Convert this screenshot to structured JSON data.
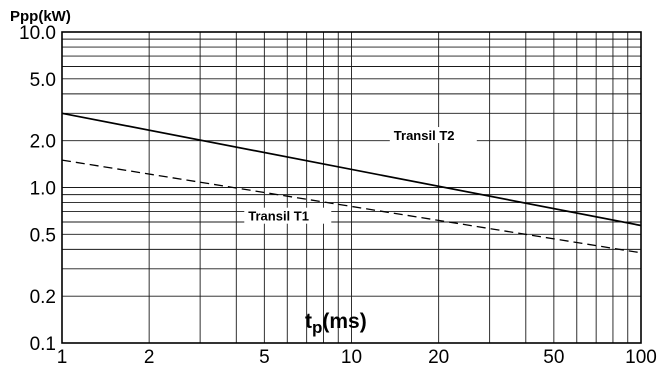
{
  "chart_data": {
    "type": "line",
    "title": "",
    "ylabel": "Ppp(kW)",
    "xlabel_main": "t",
    "xlabel_sub": "p",
    "xlabel_unit": "(ms)",
    "x_scale": "log",
    "y_scale": "log",
    "xlim": [
      1,
      100
    ],
    "ylim": [
      0.1,
      10
    ],
    "x_ticks": [
      1,
      2,
      5,
      10,
      20,
      50,
      100
    ],
    "x_tick_labels": [
      "1",
      "2",
      "5",
      "10",
      "20",
      "50",
      "100"
    ],
    "y_ticks": [
      0.1,
      0.2,
      0.5,
      1,
      2,
      5,
      10
    ],
    "y_tick_labels": [
      "0.1",
      "0.2",
      "0.5",
      "1.0",
      "2.0",
      "5.0",
      "10.0"
    ],
    "grid": true,
    "series": [
      {
        "name": "Transil T2",
        "style": "solid",
        "x": [
          1,
          100
        ],
        "y": [
          3.0,
          0.57
        ]
      },
      {
        "name": "Transil T1",
        "style": "dashed",
        "x": [
          1,
          100
        ],
        "y": [
          1.5,
          0.38
        ]
      }
    ]
  }
}
